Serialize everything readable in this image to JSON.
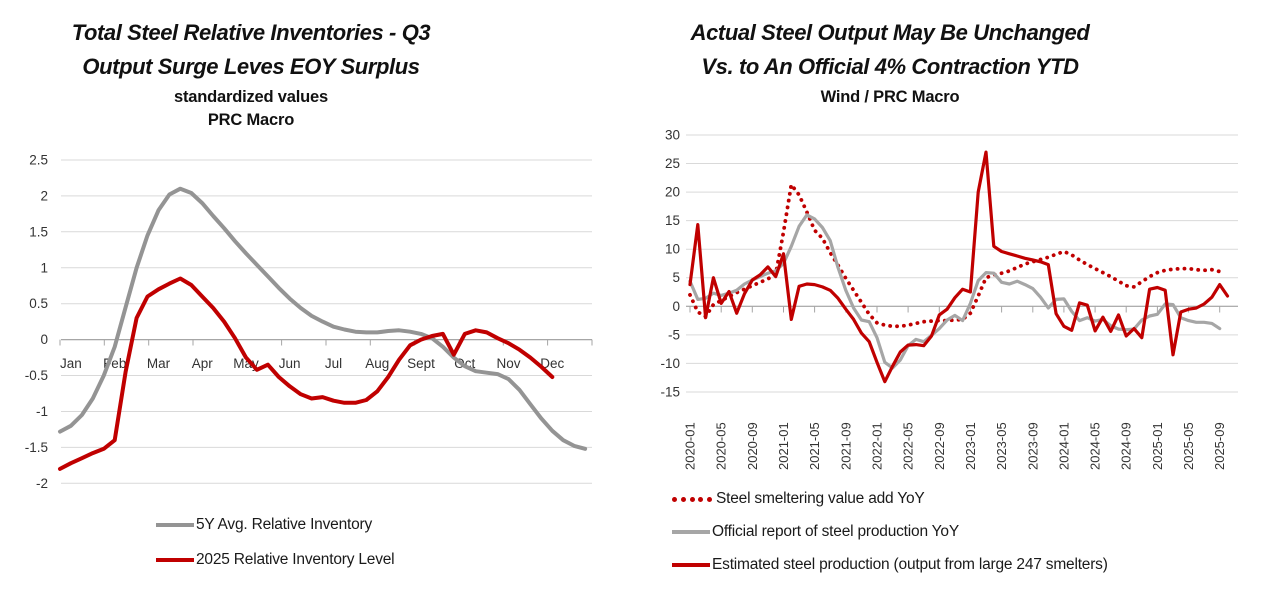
{
  "colors": {
    "accent_red": "#c00000",
    "gray_left": "#949494",
    "gray_right": "#a6a6a6",
    "gridline": "#d9d9d9",
    "axis": "#a6a6a6",
    "tick_text": "#333333"
  },
  "chart_data": [
    {
      "type": "line",
      "title_lines": [
        "Total Steel Relative Inventories - Q3",
        "Output Surge Leves EOY Surplus"
      ],
      "subtitle_lines": [
        "standardized values",
        "PRC Macro"
      ],
      "x_tick_labels": [
        "Jan",
        "Feb",
        "Mar",
        "Apr",
        "May",
        "Jun",
        "Jul",
        "Aug",
        "Sept",
        "Oct",
        "Nov",
        "Dec"
      ],
      "y_tick_labels": [
        "2.5",
        "2",
        "1.5",
        "1",
        "0.5",
        "0",
        "-0.5",
        "-1",
        "-1.5",
        "-2"
      ],
      "ylim": [
        -2,
        2.5
      ],
      "x_resolution": "4 points per month, Jan through Dec",
      "grid": true,
      "legend_position": "bottom",
      "series": [
        {
          "name": "5Y Avg. Relative Inventory",
          "color": "#949494",
          "style": "solid",
          "values": [
            -1.28,
            -1.2,
            -1.05,
            -0.82,
            -0.5,
            -0.1,
            0.45,
            1.0,
            1.45,
            1.8,
            2.02,
            2.1,
            2.04,
            1.9,
            1.72,
            1.55,
            1.37,
            1.2,
            1.04,
            0.88,
            0.72,
            0.57,
            0.44,
            0.33,
            0.25,
            0.18,
            0.14,
            0.11,
            0.1,
            0.1,
            0.12,
            0.13,
            0.11,
            0.08,
            0.02,
            -0.1,
            -0.25,
            -0.37,
            -0.44,
            -0.46,
            -0.48,
            -0.55,
            -0.7,
            -0.9,
            -1.1,
            -1.27,
            -1.4,
            -1.48,
            -1.52
          ]
        },
        {
          "name": "2025 Relative Inventory Level",
          "color": "#c00000",
          "style": "solid",
          "values": [
            -1.8,
            -1.72,
            -1.65,
            -1.58,
            -1.52,
            -1.4,
            -0.45,
            0.3,
            0.6,
            0.7,
            0.78,
            0.85,
            0.76,
            0.6,
            0.44,
            0.25,
            0.02,
            -0.25,
            -0.42,
            -0.35,
            -0.52,
            -0.65,
            -0.76,
            -0.82,
            -0.8,
            -0.85,
            -0.88,
            -0.88,
            -0.84,
            -0.72,
            -0.52,
            -0.28,
            -0.08,
            0.0,
            0.05,
            0.08,
            -0.21,
            0.08,
            0.13,
            0.1,
            0.02,
            -0.05,
            -0.14,
            -0.25,
            -0.38,
            -0.52
          ]
        }
      ]
    },
    {
      "type": "line",
      "title_lines": [
        "Actual Steel Output May Be Unchanged",
        "Vs. to An Official 4% Contraction YTD"
      ],
      "subtitle_lines": [
        "Wind / PRC Macro"
      ],
      "x_tick_labels": [
        "2020-01",
        "2020-05",
        "2020-09",
        "2021-01",
        "2021-05",
        "2021-09",
        "2022-01",
        "2022-05",
        "2022-09",
        "2023-01",
        "2023-05",
        "2023-09",
        "2024-01",
        "2024-05",
        "2024-09",
        "2025-01",
        "2025-05",
        "2025-09"
      ],
      "x_resolution": "monthly from 2020-01 to 2025-10, labels every 4 months",
      "y_tick_labels": [
        "30",
        "25",
        "20",
        "15",
        "10",
        "5",
        "0",
        "-5",
        "-10",
        "-15"
      ],
      "ylim": [
        -15,
        30
      ],
      "grid": true,
      "legend_position": "bottom",
      "series": [
        {
          "name": "Steel smeltering value add YoY",
          "color": "#c00000",
          "style": "dotted",
          "values": [
            2,
            -1,
            -1.8,
            0.3,
            1,
            1.7,
            2.4,
            3,
            3.6,
            4.2,
            4.8,
            5.6,
            13,
            21.3,
            19.5,
            16.5,
            13.3,
            11.9,
            9.4,
            7.2,
            4.9,
            2.8,
            0.7,
            -1.4,
            -2.9,
            -3.3,
            -3.5,
            -3.5,
            -3.3,
            -3,
            -2.7,
            -2.6,
            -2.5,
            -2.5,
            -2.4,
            -2.3,
            -1.2,
            1.8,
            5,
            5.5,
            5.8,
            6.2,
            6.8,
            7.4,
            7.8,
            8.2,
            8.6,
            9.1,
            9.6,
            9,
            8.1,
            7.3,
            6.6,
            5.9,
            5.2,
            4.4,
            3.6,
            3.4,
            4.3,
            5.2,
            5.9,
            6.3,
            6.5,
            6.6,
            6.6,
            6.4,
            6.3,
            6.4,
            6.1
          ]
        },
        {
          "name": "Official report of steel production YoY",
          "color": "#a6a6a6",
          "style": "solid",
          "values": [
            4.4,
            1.2,
            1.4,
            2.3,
            1.9,
            2.3,
            2.8,
            3.9,
            4.6,
            5.2,
            5.8,
            6.2,
            7.5,
            10.5,
            14,
            16,
            15.3,
            13.8,
            11.5,
            6.8,
            2.8,
            -0.3,
            -2.4,
            -2.7,
            -5.5,
            -9.8,
            -10.8,
            -9.4,
            -6.9,
            -5.8,
            -6.2,
            -5.1,
            -3.9,
            -2.4,
            -1.6,
            -2.5,
            0.5,
            4.5,
            5.9,
            5.8,
            4.2,
            3.9,
            4.4,
            3.8,
            3.1,
            1.6,
            -0.3,
            1.2,
            1.3,
            -0.9,
            -2.5,
            -2,
            -2.6,
            -2.3,
            -3.4,
            -4,
            -4.1,
            -4,
            -2.4,
            -1.7,
            -1.4,
            0.4,
            0.3,
            -2,
            -2.5,
            -2.8,
            -2.8,
            -3,
            -3.9
          ]
        },
        {
          "name": "Estimated steel production (output from large 247 smelters)",
          "color": "#c00000",
          "style": "solid",
          "values": [
            3.8,
            14.3,
            -2,
            5,
            0.5,
            2.6,
            -1.2,
            2.2,
            4.6,
            5.5,
            6.9,
            5.2,
            9.2,
            -2.3,
            3.5,
            3.9,
            3.8,
            3.4,
            2.8,
            1.4,
            -0.5,
            -2.3,
            -4.7,
            -6.2,
            -9.8,
            -13.2,
            -10.5,
            -8,
            -6.8,
            -6.7,
            -6.9,
            -5.2,
            -1.5,
            -0.5,
            1.5,
            3,
            2.5,
            20,
            27,
            10.5,
            9.6,
            9.2,
            8.8,
            8.4,
            8.1,
            7.8,
            7.3,
            -1.3,
            -3.5,
            -4.2,
            0.6,
            0.2,
            -4.3,
            -1.9,
            -4.4,
            -1.5,
            -5.2,
            -3.9,
            -5.5,
            3,
            3.3,
            2.8,
            -8.5,
            -1,
            -0.5,
            -0.3,
            0.4,
            1.6,
            3.8,
            1.8
          ]
        }
      ]
    }
  ]
}
